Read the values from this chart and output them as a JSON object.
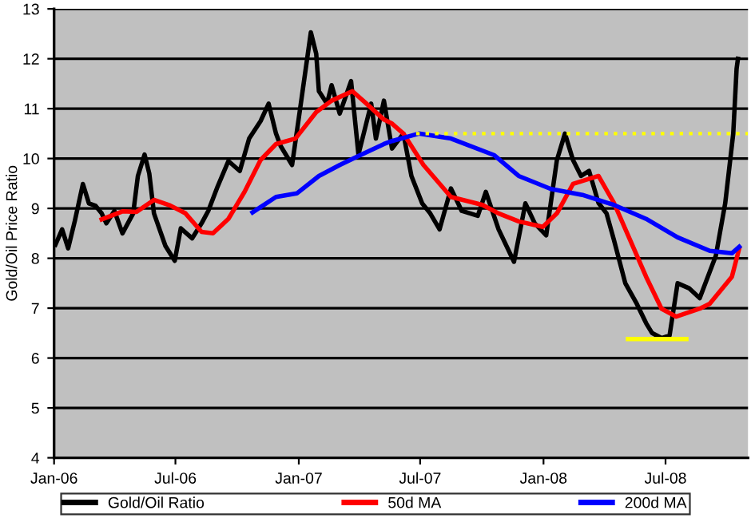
{
  "chart_data": {
    "type": "line",
    "ylabel": "Gold/Oil Price Ratio",
    "xlim": [
      "2006-01-01",
      "2008-11-01"
    ],
    "ylim": [
      4,
      13
    ],
    "xticks": [
      {
        "value": "2006-01-01",
        "label": "Jan-06"
      },
      {
        "value": "2006-07-01",
        "label": "Jul-06"
      },
      {
        "value": "2007-01-01",
        "label": "Jan-07"
      },
      {
        "value": "2007-07-01",
        "label": "Jul-07"
      },
      {
        "value": "2008-01-01",
        "label": "Jan-08"
      },
      {
        "value": "2008-07-01",
        "label": "Jul-08"
      }
    ],
    "yticks": [
      4,
      5,
      6,
      7,
      8,
      9,
      10,
      11,
      12,
      13
    ],
    "grid": "y",
    "legend": "bottom",
    "marker": "none",
    "series": [
      {
        "name": "Gold/Oil Ratio",
        "color": "#000000",
        "x": [
          "2006-01-03",
          "2006-01-13",
          "2006-01-22",
          "2006-02-01",
          "2006-02-13",
          "2006-02-22",
          "2006-03-04",
          "2006-03-13",
          "2006-03-20",
          "2006-04-01",
          "2006-04-13",
          "2006-04-29",
          "2006-05-06",
          "2006-05-16",
          "2006-05-23",
          "2006-05-30",
          "2006-06-16",
          "2006-06-30",
          "2006-07-09",
          "2006-07-26",
          "2006-08-09",
          "2006-08-19",
          "2006-09-02",
          "2006-09-18",
          "2006-10-05",
          "2006-10-19",
          "2006-11-05",
          "2006-11-17",
          "2006-11-28",
          "2006-12-05",
          "2006-12-22",
          "2007-01-03",
          "2007-01-19",
          "2007-01-27",
          "2007-01-31",
          "2007-02-12",
          "2007-02-19",
          "2007-03-03",
          "2007-03-20",
          "2007-03-31",
          "2007-04-19",
          "2007-04-26",
          "2007-05-08",
          "2007-05-20",
          "2007-06-06",
          "2007-06-18",
          "2007-07-04",
          "2007-07-16",
          "2007-07-30",
          "2007-08-16",
          "2007-09-01",
          "2007-09-25",
          "2007-10-07",
          "2007-10-26",
          "2007-11-18",
          "2007-12-05",
          "2007-12-19",
          "2008-01-05",
          "2008-01-21",
          "2008-02-02",
          "2008-02-14",
          "2008-02-26",
          "2008-03-09",
          "2008-03-23",
          "2008-04-04",
          "2008-04-15",
          "2008-05-02",
          "2008-05-19",
          "2008-06-02",
          "2008-06-11",
          "2008-06-25",
          "2008-07-07",
          "2008-07-19",
          "2008-08-05",
          "2008-08-21",
          "2008-09-14",
          "2008-09-28",
          "2008-10-10",
          "2008-10-15",
          "2008-10-17"
        ],
        "values": [
          8.27,
          8.58,
          8.2,
          8.75,
          9.49,
          9.1,
          9.05,
          8.9,
          8.7,
          8.95,
          8.5,
          8.9,
          9.65,
          10.08,
          9.7,
          8.9,
          8.25,
          7.95,
          8.6,
          8.4,
          8.7,
          8.95,
          9.44,
          9.95,
          9.75,
          10.4,
          10.75,
          11.1,
          10.5,
          10.25,
          9.87,
          11.0,
          12.53,
          12.1,
          11.35,
          11.1,
          11.47,
          10.9,
          11.55,
          10.08,
          11.1,
          10.4,
          11.16,
          10.2,
          10.5,
          9.65,
          9.1,
          8.9,
          8.58,
          9.4,
          8.95,
          8.85,
          9.33,
          8.58,
          7.93,
          9.1,
          8.7,
          8.46,
          9.97,
          10.5,
          9.97,
          9.65,
          9.75,
          9.11,
          8.9,
          8.37,
          7.5,
          7.09,
          6.7,
          6.5,
          6.4,
          6.45,
          7.5,
          7.4,
          7.2,
          8.05,
          9.1,
          10.5,
          11.8,
          12.0
        ]
      },
      {
        "name": "50d MA",
        "color": "#ff0000",
        "x": [
          "2006-03-13",
          "2006-04-13",
          "2006-05-04",
          "2006-05-30",
          "2006-06-23",
          "2006-07-16",
          "2006-08-09",
          "2006-08-26",
          "2006-09-18",
          "2006-10-12",
          "2006-11-05",
          "2006-11-28",
          "2006-12-27",
          "2007-01-27",
          "2007-02-19",
          "2007-03-22",
          "2007-04-12",
          "2007-05-08",
          "2007-05-20",
          "2007-06-06",
          "2007-07-06",
          "2007-08-16",
          "2007-10-02",
          "2007-10-26",
          "2007-11-25",
          "2007-12-31",
          "2008-01-21",
          "2008-02-14",
          "2008-03-23",
          "2008-04-15",
          "2008-05-09",
          "2008-06-02",
          "2008-06-25",
          "2008-07-17",
          "2008-08-21",
          "2008-09-05",
          "2008-10-08",
          "2008-10-19"
        ],
        "values": [
          8.78,
          8.94,
          8.93,
          9.17,
          9.06,
          8.9,
          8.53,
          8.5,
          8.79,
          9.33,
          9.97,
          10.29,
          10.4,
          10.93,
          11.16,
          11.35,
          11.1,
          10.78,
          10.7,
          10.5,
          9.87,
          9.23,
          9.07,
          8.9,
          8.74,
          8.63,
          8.9,
          9.49,
          9.65,
          9.11,
          8.37,
          7.63,
          6.99,
          6.83,
          6.99,
          7.09,
          7.63,
          8.2
        ]
      },
      {
        "name": "200d MA",
        "color": "#0000ff",
        "x": [
          "2006-10-24",
          "2006-11-28",
          "2006-12-29",
          "2007-01-31",
          "2007-03-03",
          "2007-04-03",
          "2007-05-08",
          "2007-05-20",
          "2007-06-29",
          "2007-08-16",
          "2007-10-19",
          "2007-11-25",
          "2008-01-12",
          "2008-02-28",
          "2008-04-15",
          "2008-06-02",
          "2008-07-19",
          "2008-09-05",
          "2008-10-08",
          "2008-10-19"
        ],
        "values": [
          8.92,
          9.23,
          9.3,
          9.65,
          9.87,
          10.07,
          10.29,
          10.35,
          10.5,
          10.4,
          10.07,
          9.65,
          9.39,
          9.27,
          9.07,
          8.79,
          8.42,
          8.15,
          8.1,
          8.23
        ]
      },
      {
        "color": "#ffff00",
        "line_style": "dotted",
        "x": [
          "2007-06-25",
          "2008-11-01"
        ],
        "values": [
          10.5,
          10.5
        ]
      },
      {
        "color": "#ffff00",
        "line_style": "solid",
        "x": [
          "2008-05-06",
          "2008-08-01"
        ],
        "values": [
          6.38,
          6.38
        ]
      }
    ]
  }
}
